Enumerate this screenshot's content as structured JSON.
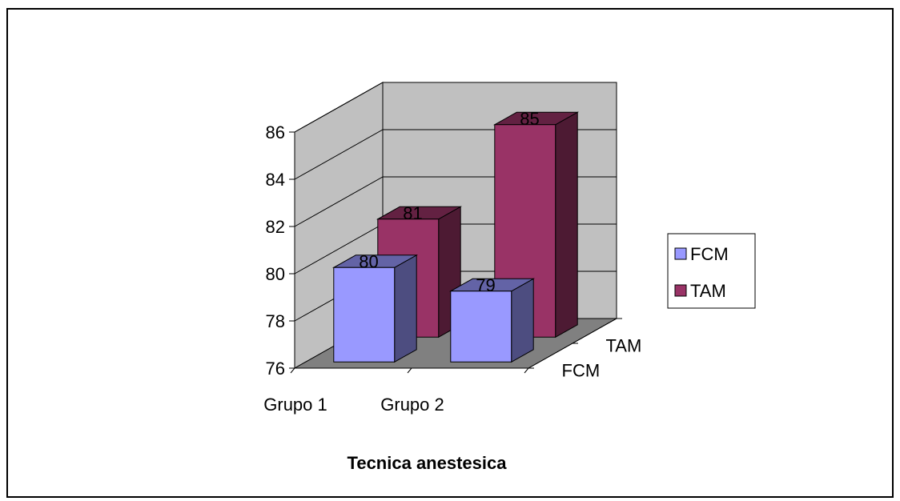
{
  "chart_data": {
    "type": "bar",
    "subtype": "3d-clustered",
    "xlabel": "Tecnica anestesica",
    "categories": [
      "Grupo 1",
      "Grupo 2"
    ],
    "series": [
      {
        "name": "FCM",
        "values": [
          80,
          79
        ],
        "color": "#9999ff"
      },
      {
        "name": "TAM",
        "values": [
          81,
          85
        ],
        "color": "#993366"
      }
    ],
    "depth_labels": [
      "FCM",
      "TAM"
    ],
    "ylim": [
      76,
      86
    ],
    "yticks": [
      76,
      78,
      80,
      82,
      84,
      86
    ],
    "grid": true,
    "legend_position": "right",
    "wall_color": "#c0c0c0",
    "floor_color": "#808080"
  }
}
